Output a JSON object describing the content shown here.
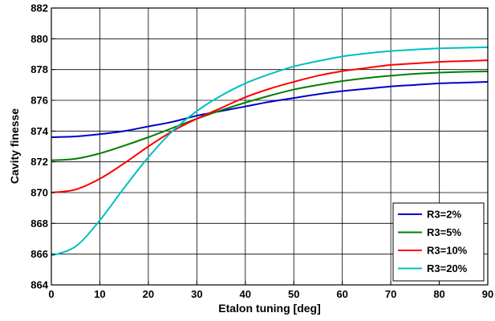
{
  "chart_data": {
    "type": "line",
    "title": "",
    "xlabel": "Etalon tuning [deg]",
    "ylabel": "Cavity finesse",
    "xlim": [
      0,
      90
    ],
    "ylim": [
      864,
      882
    ],
    "xticks": [
      0,
      10,
      20,
      30,
      40,
      50,
      60,
      70,
      80,
      90
    ],
    "yticks": [
      864,
      866,
      868,
      870,
      872,
      874,
      876,
      878,
      880,
      882
    ],
    "grid": true,
    "legend_position": "bottom-right",
    "x": [
      0,
      5,
      10,
      15,
      20,
      25,
      30,
      35,
      40,
      45,
      50,
      55,
      60,
      65,
      70,
      75,
      80,
      85,
      90
    ],
    "series": [
      {
        "name": "R3=2%",
        "color": "#0000cc",
        "values": [
          873.6,
          873.65,
          873.8,
          874.0,
          874.3,
          874.6,
          875.0,
          875.3,
          875.6,
          875.9,
          876.15,
          876.4,
          876.6,
          876.75,
          876.9,
          877.0,
          877.1,
          877.15,
          877.2
        ]
      },
      {
        "name": "R3=5%",
        "color": "#007f00",
        "values": [
          872.1,
          872.2,
          872.55,
          873.05,
          873.6,
          874.2,
          874.8,
          875.35,
          875.85,
          876.3,
          876.7,
          877.0,
          877.25,
          877.45,
          877.6,
          877.72,
          877.8,
          877.85,
          877.88
        ]
      },
      {
        "name": "R3=10%",
        "color": "#ff0000",
        "values": [
          870.0,
          870.2,
          870.9,
          871.9,
          873.0,
          874.0,
          874.8,
          875.5,
          876.2,
          876.75,
          877.2,
          877.6,
          877.9,
          878.1,
          878.3,
          878.4,
          878.5,
          878.55,
          878.6
        ]
      },
      {
        "name": "R3=20%",
        "color": "#00bfbf",
        "values": [
          865.9,
          866.5,
          868.2,
          870.3,
          872.3,
          874.0,
          875.3,
          876.3,
          877.1,
          877.7,
          878.2,
          878.55,
          878.85,
          879.05,
          879.2,
          879.3,
          879.38,
          879.42,
          879.45
        ]
      }
    ]
  }
}
